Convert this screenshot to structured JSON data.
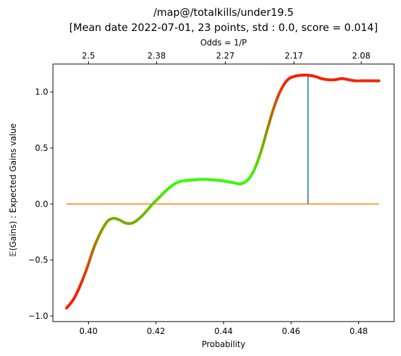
{
  "chart_data": {
    "type": "line",
    "title": "/map@/totalkills/under19.5",
    "subtitle": "[Mean date 2022-07-01, 23 points, std : 0.0, score = 0.014]",
    "xlabel": "Probability",
    "ylabel": "𝔼(Gains) : Expected Gains value",
    "top_axis_label": "Odds  = 1/P",
    "xlim": [
      0.3895,
      0.4905
    ],
    "ylim": [
      -1.05,
      1.25
    ],
    "x_ticks": [
      0.4,
      0.42,
      0.44,
      0.46,
      0.48
    ],
    "x_tick_labels": [
      "0.40",
      "0.42",
      "0.44",
      "0.46",
      "0.48"
    ],
    "y_ticks": [
      -1.0,
      -0.5,
      0.0,
      0.5,
      1.0
    ],
    "y_tick_labels": [
      "−1.0",
      "−0.5",
      "0.0",
      "0.5",
      "1.0"
    ],
    "top_ticks": [
      2.5,
      2.38,
      2.27,
      2.17,
      2.08
    ],
    "top_tick_labels": [
      "2.5",
      "2.38",
      "2.27",
      "2.17",
      "2.08"
    ],
    "series": [
      {
        "color_scale": "red-to-green by gain",
        "x": [
          0.3935,
          0.396,
          0.399,
          0.402,
          0.405,
          0.407,
          0.409,
          0.411,
          0.413,
          0.415,
          0.417,
          0.419,
          0.421,
          0.423,
          0.425,
          0.427,
          0.429,
          0.431,
          0.433,
          0.435,
          0.437,
          0.439,
          0.441,
          0.443,
          0.445,
          0.447,
          0.449,
          0.451,
          0.453,
          0.455,
          0.457,
          0.459,
          0.461,
          0.463,
          0.465,
          0.467,
          0.469,
          0.471,
          0.473,
          0.475,
          0.477,
          0.479,
          0.481,
          0.483,
          0.486
        ],
        "y": [
          -0.93,
          -0.83,
          -0.62,
          -0.36,
          -0.18,
          -0.13,
          -0.14,
          -0.17,
          -0.17,
          -0.13,
          -0.07,
          0.0,
          0.06,
          0.12,
          0.17,
          0.2,
          0.21,
          0.215,
          0.22,
          0.22,
          0.215,
          0.21,
          0.2,
          0.19,
          0.18,
          0.21,
          0.3,
          0.46,
          0.67,
          0.87,
          1.02,
          1.11,
          1.14,
          1.15,
          1.15,
          1.14,
          1.12,
          1.11,
          1.11,
          1.12,
          1.11,
          1.1,
          1.1,
          1.1,
          1.1
        ]
      }
    ],
    "zero_line": {
      "y": 0.0,
      "x_range": [
        0.3935,
        0.486
      ],
      "color": "#ff7f0e"
    },
    "marker_line": {
      "x": 0.465,
      "y_range": [
        0.0,
        1.15
      ],
      "color": "#1f77b4"
    },
    "colors": {
      "low": "#ff1a00",
      "high": "#33ff00",
      "axis": "#000000"
    }
  }
}
